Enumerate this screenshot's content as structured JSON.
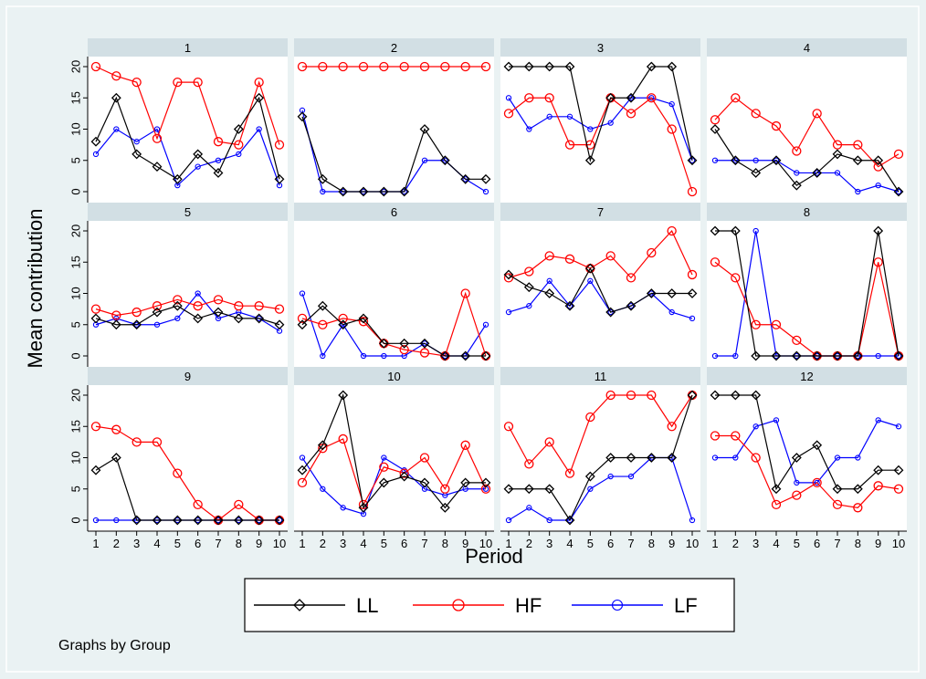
{
  "chart_data": {
    "type": "line",
    "ylabel": "Mean contribution",
    "xlabel": "Period",
    "note": "Graphs by Group",
    "x": [
      1,
      2,
      3,
      4,
      5,
      6,
      7,
      8,
      9,
      10
    ],
    "x_ticks": [
      "1",
      "2",
      "3",
      "4",
      "5",
      "6",
      "7",
      "8",
      "9",
      "10"
    ],
    "ylim": [
      0,
      20
    ],
    "y_ticks": [
      "0",
      "5",
      "10",
      "15",
      "20"
    ],
    "grid": false,
    "legend_position": "bottom",
    "series_styles": [
      {
        "name": "LL",
        "color": "#000000",
        "marker": "diamond"
      },
      {
        "name": "HF",
        "color": "#ff0000",
        "marker": "circle"
      },
      {
        "name": "LF",
        "color": "#0000ff",
        "marker": "small-circle"
      }
    ],
    "panels": [
      {
        "label": "1",
        "series": [
          {
            "name": "LL",
            "values": [
              8,
              15,
              6,
              4,
              2,
              6,
              3,
              10,
              15,
              2
            ]
          },
          {
            "name": "HF",
            "values": [
              20,
              18.5,
              17.5,
              8.5,
              17.5,
              17.5,
              8,
              7.5,
              17.5,
              7.5
            ]
          },
          {
            "name": "LF",
            "values": [
              6,
              10,
              8,
              10,
              1,
              4,
              5,
              6,
              10,
              1
            ]
          }
        ]
      },
      {
        "label": "2",
        "series": [
          {
            "name": "LL",
            "values": [
              12,
              2,
              0,
              0,
              0,
              0,
              10,
              5,
              2,
              2
            ]
          },
          {
            "name": "HF",
            "values": [
              20,
              20,
              20,
              20,
              20,
              20,
              20,
              20,
              20,
              20
            ]
          },
          {
            "name": "LF",
            "values": [
              13,
              0,
              0,
              0,
              0,
              0,
              5,
              5,
              2,
              0
            ]
          }
        ]
      },
      {
        "label": "3",
        "series": [
          {
            "name": "LL",
            "values": [
              20,
              20,
              20,
              20,
              5,
              15,
              15,
              20,
              20,
              5
            ]
          },
          {
            "name": "HF",
            "values": [
              12.5,
              15,
              15,
              7.5,
              7.5,
              15,
              12.5,
              15,
              10,
              0
            ]
          },
          {
            "name": "LF",
            "values": [
              15,
              10,
              12,
              12,
              10,
              11,
              15,
              15,
              14,
              5
            ]
          }
        ]
      },
      {
        "label": "4",
        "series": [
          {
            "name": "LL",
            "values": [
              10,
              5,
              3,
              5,
              1,
              3,
              6,
              5,
              5,
              0
            ]
          },
          {
            "name": "HF",
            "values": [
              11.5,
              15,
              12.5,
              10.5,
              6.5,
              12.5,
              7.5,
              7.5,
              4,
              6
            ]
          },
          {
            "name": "LF",
            "values": [
              5,
              5,
              5,
              5,
              3,
              3,
              3,
              0,
              1,
              0
            ]
          }
        ]
      },
      {
        "label": "5",
        "series": [
          {
            "name": "LL",
            "values": [
              6,
              5,
              5,
              7,
              8,
              6,
              7,
              6,
              6,
              5
            ]
          },
          {
            "name": "HF",
            "values": [
              7.5,
              6.5,
              7,
              8,
              9,
              8,
              9,
              8,
              8,
              7.5
            ]
          },
          {
            "name": "LF",
            "values": [
              5,
              6,
              5,
              5,
              6,
              10,
              6,
              7,
              6,
              4
            ]
          }
        ]
      },
      {
        "label": "6",
        "series": [
          {
            "name": "LL",
            "values": [
              5,
              8,
              5,
              6,
              2,
              2,
              2,
              0,
              0,
              0
            ]
          },
          {
            "name": "HF",
            "values": [
              6,
              5,
              6,
              5.5,
              2,
              1,
              0.5,
              0,
              10,
              0
            ]
          },
          {
            "name": "LF",
            "values": [
              10,
              0,
              5,
              0,
              0,
              0,
              2,
              0,
              0,
              5
            ]
          }
        ]
      },
      {
        "label": "7",
        "series": [
          {
            "name": "LL",
            "values": [
              13,
              11,
              10,
              8,
              14,
              7,
              8,
              10,
              10,
              10
            ]
          },
          {
            "name": "HF",
            "values": [
              12.5,
              13.5,
              16,
              15.5,
              14,
              16,
              12.5,
              16.5,
              20,
              13
            ]
          },
          {
            "name": "LF",
            "values": [
              7,
              8,
              12,
              8,
              12,
              7,
              8,
              10,
              7,
              6
            ]
          }
        ]
      },
      {
        "label": "8",
        "series": [
          {
            "name": "LL",
            "values": [
              20,
              20,
              0,
              0,
              0,
              0,
              0,
              0,
              20,
              0
            ]
          },
          {
            "name": "HF",
            "values": [
              15,
              12.5,
              5,
              5,
              2.5,
              0,
              0,
              0,
              15,
              0
            ]
          },
          {
            "name": "LF",
            "values": [
              0,
              0,
              20,
              0,
              0,
              0,
              0,
              0,
              0,
              0
            ]
          }
        ]
      },
      {
        "label": "9",
        "series": [
          {
            "name": "LL",
            "values": [
              8,
              10,
              0,
              0,
              0,
              0,
              0,
              0,
              0,
              0
            ]
          },
          {
            "name": "HF",
            "values": [
              15,
              14.5,
              12.5,
              12.5,
              7.5,
              2.5,
              0,
              2.5,
              0,
              0
            ]
          },
          {
            "name": "LF",
            "values": [
              0,
              0,
              0,
              0,
              0,
              0,
              0,
              0,
              0,
              0
            ]
          }
        ]
      },
      {
        "label": "10",
        "series": [
          {
            "name": "LL",
            "values": [
              8,
              12,
              20,
              2,
              6,
              7,
              6,
              2,
              6,
              6
            ]
          },
          {
            "name": "HF",
            "values": [
              6,
              11.5,
              13,
              2.5,
              8.5,
              7.5,
              10,
              5,
              12,
              5
            ]
          },
          {
            "name": "LF",
            "values": [
              10,
              5,
              2,
              1,
              10,
              8,
              5,
              4,
              5,
              5
            ]
          }
        ]
      },
      {
        "label": "11",
        "series": [
          {
            "name": "LL",
            "values": [
              5,
              5,
              5,
              0,
              7,
              10,
              10,
              10,
              10,
              20
            ]
          },
          {
            "name": "HF",
            "values": [
              15,
              9,
              12.5,
              7.5,
              16.5,
              20,
              20,
              20,
              15,
              20
            ]
          },
          {
            "name": "LF",
            "values": [
              0,
              2,
              0,
              0,
              5,
              7,
              7,
              10,
              10,
              0
            ]
          }
        ]
      },
      {
        "label": "12",
        "series": [
          {
            "name": "LL",
            "values": [
              20,
              20,
              20,
              5,
              10,
              12,
              5,
              5,
              8,
              8
            ]
          },
          {
            "name": "HF",
            "values": [
              13.5,
              13.5,
              10,
              2.5,
              4,
              6,
              2.5,
              2,
              5.5,
              5
            ]
          },
          {
            "name": "LF",
            "values": [
              10,
              10,
              15,
              16,
              6,
              6,
              10,
              10,
              16,
              15
            ]
          }
        ]
      }
    ]
  }
}
